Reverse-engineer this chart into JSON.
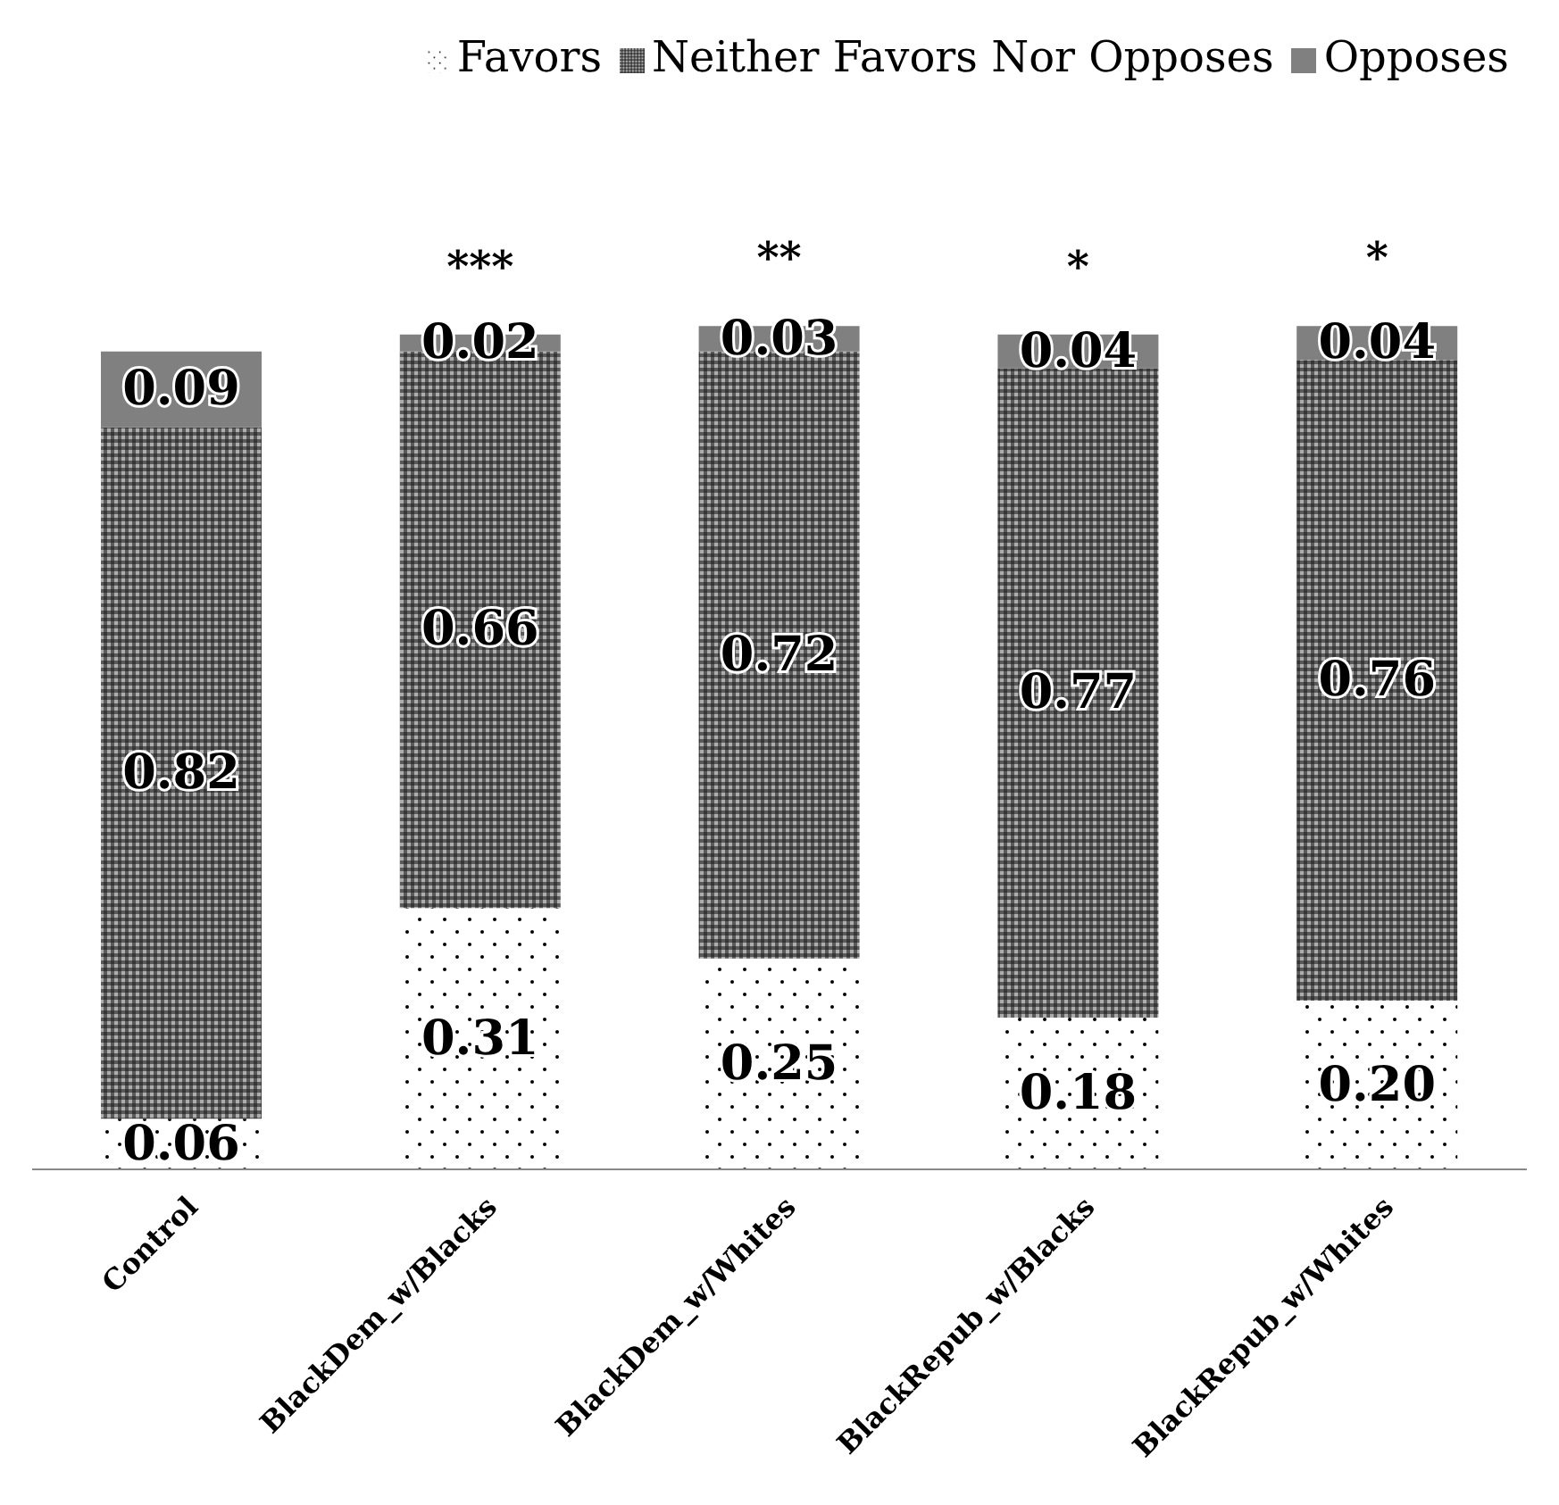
{
  "chart_data": {
    "type": "bar",
    "stacked": true,
    "legend": "top right",
    "tick_labels": "x",
    "categories": [
      "Control",
      "BlackDem_w/Blacks",
      "BlackDem_w/Whites",
      "BlackRepub_w/Blacks",
      "BlackRepub_w/Whites"
    ],
    "series": [
      {
        "name": "Favors",
        "color": "#ffffff",
        "values": [
          0.06,
          0.31,
          0.25,
          0.18,
          0.2
        ],
        "value_labels": [
          "0.06",
          "0.31",
          "0.25",
          "0.18",
          "0.20"
        ]
      },
      {
        "name": "Neither Favors Nor Opposes",
        "color": "#5a5a5a",
        "values": [
          0.82,
          0.66,
          0.72,
          0.77,
          0.76
        ],
        "value_labels": [
          "0.82",
          "0.66",
          "0.72",
          "0.77",
          "0.76"
        ]
      },
      {
        "name": "Opposes",
        "color": "#808080",
        "values": [
          0.09,
          0.02,
          0.03,
          0.04,
          0.04
        ],
        "value_labels": [
          "0.09",
          "0.02",
          "0.03",
          "0.04",
          "0.04"
        ]
      }
    ],
    "annotations": [
      "***",
      "**",
      "*",
      "*"
    ]
  }
}
